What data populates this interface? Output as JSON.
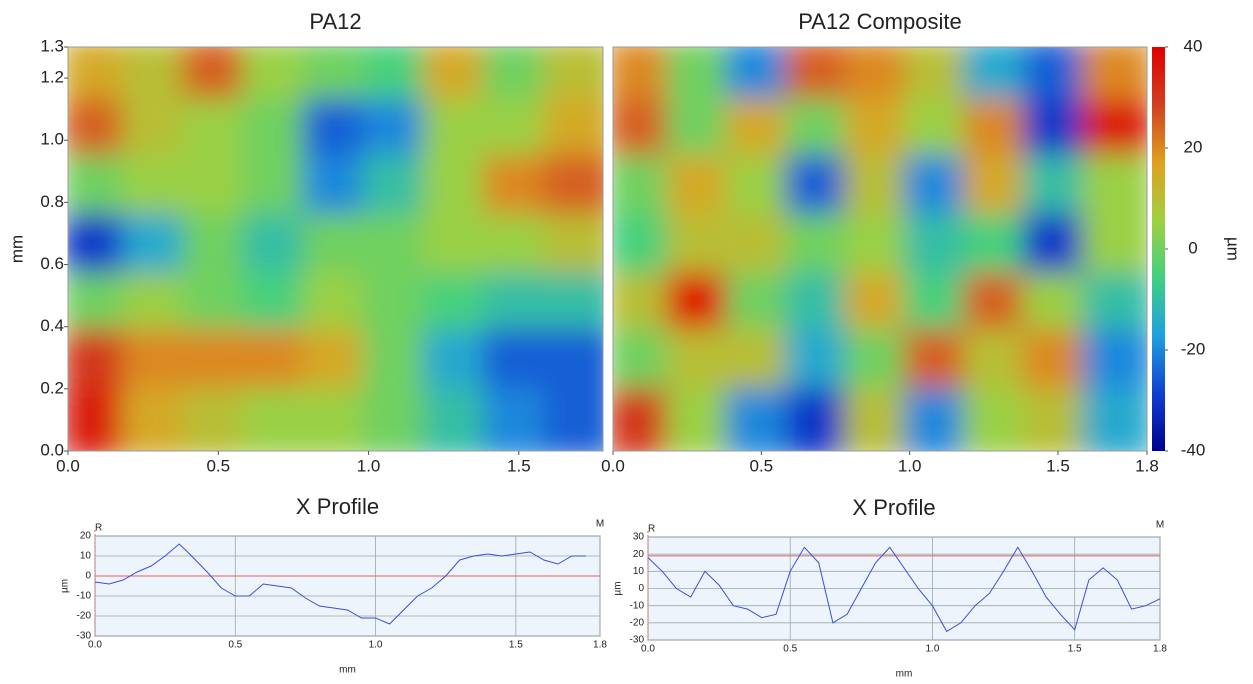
{
  "chart_data": [
    {
      "type": "heatmap",
      "title": "PA12",
      "ylabel": "mm",
      "xlim": [
        0,
        1.78
      ],
      "ylim": [
        0,
        1.3
      ],
      "zlim": [
        -40,
        40
      ],
      "colorscale": [
        "#00008f",
        "#1040d0",
        "#20a0e0",
        "#40d080",
        "#a0d040",
        "#e0a020",
        "#d04020",
        "#e00000"
      ],
      "xticks": [
        {
          "value": 0,
          "label": "0.0"
        },
        {
          "value": 0.5,
          "label": "0.5"
        },
        {
          "value": 1,
          "label": "1.0"
        },
        {
          "value": 1.5,
          "label": "1.5"
        }
      ],
      "yticks": [
        {
          "value": 0,
          "label": "0.0"
        },
        {
          "value": 0.2,
          "label": "0.2"
        },
        {
          "value": 0.4,
          "label": "0.4"
        },
        {
          "value": 0.6,
          "label": "0.6"
        },
        {
          "value": 0.8,
          "label": "0.8"
        },
        {
          "value": 1,
          "label": "1.0"
        },
        {
          "value": 1.2,
          "label": "1.2"
        },
        {
          "value": 1.3,
          "label": "1.3"
        }
      ],
      "x": [
        0.1,
        0.3,
        0.5,
        0.7,
        0.9,
        1.1,
        1.3,
        1.5,
        1.7
      ],
      "y": [
        1.21,
        1.02,
        0.84,
        0.65,
        0.46,
        0.28,
        0.09
      ],
      "z": [
        [
          15,
          10,
          25,
          5,
          0,
          -5,
          15,
          0,
          10
        ],
        [
          25,
          10,
          5,
          0,
          -25,
          -20,
          5,
          5,
          15
        ],
        [
          0,
          5,
          5,
          0,
          -20,
          -10,
          5,
          20,
          25
        ],
        [
          -30,
          -15,
          0,
          -10,
          0,
          0,
          5,
          5,
          10
        ],
        [
          0,
          5,
          0,
          -5,
          5,
          0,
          -5,
          -10,
          -10
        ],
        [
          30,
          20,
          20,
          20,
          15,
          0,
          -15,
          -25,
          -25
        ],
        [
          35,
          15,
          10,
          5,
          5,
          0,
          -10,
          -20,
          -25
        ]
      ]
    },
    {
      "type": "heatmap",
      "title": "PA12 Composite",
      "xlim": [
        0,
        1.8
      ],
      "ylim": [
        0,
        1.3
      ],
      "zlim": [
        -40,
        40
      ],
      "colorscale": [
        "#00008f",
        "#1040d0",
        "#20a0e0",
        "#40d080",
        "#a0d040",
        "#e0a020",
        "#d04020",
        "#e00000"
      ],
      "colorbar_label": "µm",
      "colorbar_ticks": [
        40,
        20,
        0,
        -20,
        -40
      ],
      "xticks": [
        {
          "value": 0,
          "label": "0.0"
        },
        {
          "value": 0.5,
          "label": "0.5"
        },
        {
          "value": 1,
          "label": "1.0"
        },
        {
          "value": 1.5,
          "label": "1.5"
        },
        1.8
      ],
      "x": [
        0.1,
        0.3,
        0.5,
        0.7,
        0.9,
        1.1,
        1.3,
        1.5,
        1.7
      ],
      "y": [
        1.21,
        1.02,
        0.84,
        0.65,
        0.46,
        0.28,
        0.09
      ],
      "z": [
        [
          20,
          0,
          -20,
          25,
          20,
          10,
          -15,
          -25,
          20
        ],
        [
          25,
          0,
          15,
          0,
          15,
          5,
          20,
          -30,
          35
        ],
        [
          0,
          15,
          5,
          -25,
          10,
          -20,
          15,
          -10,
          5
        ],
        [
          -5,
          10,
          10,
          0,
          5,
          -10,
          -5,
          -30,
          5
        ],
        [
          10,
          38,
          0,
          -10,
          15,
          -5,
          25,
          5,
          -10
        ],
        [
          0,
          10,
          10,
          -15,
          0,
          25,
          10,
          20,
          -20
        ],
        [
          30,
          5,
          -20,
          -30,
          10,
          -20,
          5,
          10,
          -15
        ]
      ]
    },
    {
      "type": "line",
      "title": "X Profile",
      "xlabel": "mm",
      "ylabel": "µm",
      "start_label": "R",
      "end_label": "M",
      "xlim": [
        0,
        1.8
      ],
      "ylim": [
        -30,
        20
      ],
      "reference": 0,
      "color": "#3b4fd8",
      "reference_color": "#e06060",
      "xticks": [
        {
          "value": 0,
          "label": "0.0"
        },
        {
          "value": 0.5,
          "label": "0.5"
        },
        {
          "value": 1,
          "label": "1.0"
        },
        {
          "value": 1.5,
          "label": "1.5"
        },
        1.8
      ],
      "yticks": [
        20,
        10,
        0,
        -10,
        -20,
        -30
      ],
      "x": [
        0,
        0.05,
        0.1,
        0.15,
        0.2,
        0.25,
        0.3,
        0.33,
        0.4,
        0.45,
        0.5,
        0.55,
        0.6,
        0.65,
        0.7,
        0.75,
        0.8,
        0.85,
        0.9,
        0.95,
        1,
        1.05,
        1.1,
        1.15,
        1.2,
        1.25,
        1.3,
        1.35,
        1.4,
        1.45,
        1.5,
        1.55,
        1.6,
        1.65,
        1.7,
        1.75
      ],
      "values": [
        -3,
        -4,
        -2,
        2,
        5,
        10,
        16,
        12,
        2,
        -6,
        -10,
        -10,
        -4,
        -5,
        -6,
        -11,
        -15,
        -16,
        -17,
        -21,
        -21,
        -24,
        -17,
        -10,
        -6,
        0,
        8,
        10,
        11,
        10,
        11,
        12,
        8,
        6,
        10,
        10
      ]
    },
    {
      "type": "line",
      "title": "X Profile",
      "xlabel": "mm",
      "ylabel": "µm",
      "start_label": "R",
      "end_label": "M",
      "xlim": [
        0,
        1.8
      ],
      "ylim": [
        -30,
        30
      ],
      "reference": 19,
      "color": "#3b4fd8",
      "reference_color": "#e06060",
      "xticks": [
        {
          "value": 0,
          "label": "0.0"
        },
        {
          "value": 0.5,
          "label": "0.5"
        },
        {
          "value": 1,
          "label": "1.0"
        },
        {
          "value": 1.5,
          "label": "1.5"
        },
        1.8
      ],
      "yticks": [
        30,
        20,
        10,
        0,
        -10,
        -20,
        -30
      ],
      "x": [
        0,
        0.05,
        0.1,
        0.15,
        0.2,
        0.25,
        0.3,
        0.35,
        0.4,
        0.45,
        0.5,
        0.55,
        0.6,
        0.65,
        0.7,
        0.75,
        0.8,
        0.85,
        0.9,
        0.95,
        1,
        1.05,
        1.1,
        1.15,
        1.2,
        1.25,
        1.3,
        1.35,
        1.4,
        1.45,
        1.5,
        1.55,
        1.6,
        1.65,
        1.7,
        1.75,
        1.8
      ],
      "values": [
        18,
        10,
        0,
        -5,
        10,
        2,
        -10,
        -12,
        -17,
        -15,
        10,
        24,
        15,
        -20,
        -15,
        0,
        15,
        24,
        12,
        0,
        -10,
        -25,
        -20,
        -10,
        -3,
        10,
        24,
        10,
        -5,
        -15,
        -24,
        5,
        12,
        5,
        -12,
        -10,
        -6
      ]
    }
  ]
}
